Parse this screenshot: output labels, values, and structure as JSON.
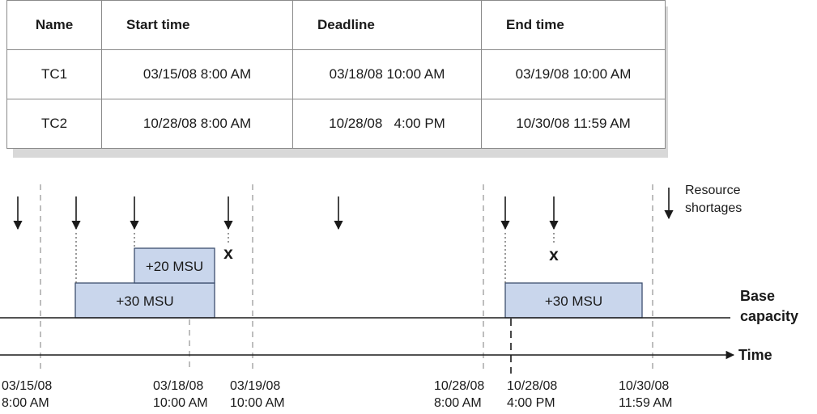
{
  "table": {
    "headers": [
      "Name",
      "Start time",
      "Deadline",
      "End time"
    ],
    "rows": [
      [
        "TC1",
        "03/15/08 8:00 AM",
        "03/18/08 10:00 AM",
        "03/19/08 10:00 AM"
      ],
      [
        "TC2",
        "10/28/08 8:00 AM",
        "10/28/08   4:00 PM",
        "10/30/08 11:59 AM"
      ]
    ]
  },
  "diagram": {
    "legend": {
      "line1": "Resource",
      "line2": "shortages"
    },
    "boxes": [
      "+30 MSU",
      "+20 MSU",
      "+30 MSU"
    ],
    "base_label": {
      "line1": "Base",
      "line2": "capacity"
    },
    "axis_label": "Time",
    "failure_marker": "x",
    "time_labels": [
      {
        "date": "03/15/08",
        "time": "8:00 AM"
      },
      {
        "date": "03/18/08",
        "time": "10:00 AM"
      },
      {
        "date": "03/19/08",
        "time": "10:00 AM"
      },
      {
        "date": "10/28/08",
        "time": "8:00 AM"
      },
      {
        "date": "10/28/08",
        "time": "4:00 PM"
      },
      {
        "date": "10/30/08",
        "time": "11:59 AM"
      }
    ]
  },
  "colors": {
    "box_fill": "#c9d6ec",
    "box_stroke": "#3d4f6f",
    "dashed": "#9a9a9a",
    "table_border": "#8a8a8a"
  }
}
